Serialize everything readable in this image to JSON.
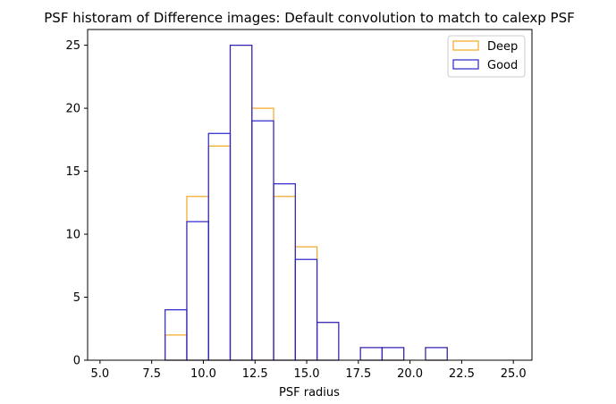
{
  "chart_data": {
    "type": "bar",
    "title": "PSF historam of Difference images: Default convolution to match to calexp PSF",
    "xlabel": "PSF radius",
    "ylabel": "",
    "xlim": [
      4.4,
      25.9
    ],
    "ylim": [
      0,
      26.25
    ],
    "xticks": [
      5.0,
      7.5,
      10.0,
      12.5,
      15.0,
      17.5,
      20.0,
      22.5,
      25.0
    ],
    "xtick_labels": [
      "5.0",
      "7.5",
      "10.0",
      "12.5",
      "15.0",
      "17.5",
      "20.0",
      "22.5",
      "25.0"
    ],
    "yticks": [
      0,
      5,
      10,
      15,
      20,
      25
    ],
    "ytick_labels": [
      "0",
      "5",
      "10",
      "15",
      "20",
      "25"
    ],
    "bin_edges": [
      5.0,
      6.05,
      7.1,
      8.15,
      9.2,
      10.25,
      11.3,
      12.35,
      13.4,
      14.45,
      15.5,
      16.55,
      17.6,
      18.65,
      19.7,
      20.75,
      21.8,
      22.85,
      23.9,
      24.95
    ],
    "series": [
      {
        "name": "Deep",
        "color": "#f5a623",
        "values": [
          0,
          0,
          0,
          2,
          13,
          17,
          25,
          20,
          13,
          9,
          3,
          0,
          1,
          1,
          0,
          1,
          0,
          0,
          0
        ]
      },
      {
        "name": "Good",
        "color": "#2a22c8",
        "values": [
          0,
          0,
          0,
          4,
          11,
          18,
          25,
          19,
          14,
          8,
          3,
          0,
          1,
          1,
          0,
          1,
          0,
          0,
          0
        ]
      }
    ],
    "legend": {
      "placement": "top-right"
    },
    "grid": false
  }
}
